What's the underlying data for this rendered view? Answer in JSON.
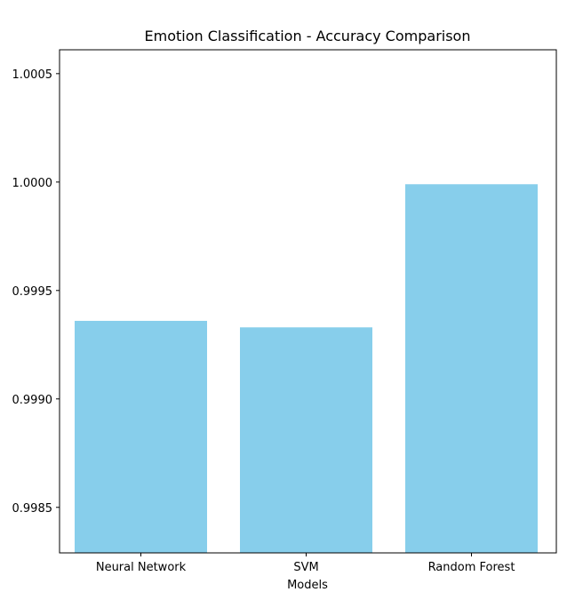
{
  "chart_data": {
    "type": "bar",
    "title": "Emotion Classification - Accuracy Comparison",
    "xlabel": "Models",
    "ylabel": "",
    "categories": [
      "Neural Network",
      "SVM",
      "Random Forest"
    ],
    "values": [
      0.99936,
      0.99933,
      0.99999
    ],
    "ylim": [
      0.99829,
      1.00061
    ],
    "yticks": [
      0.9985,
      0.999,
      0.9995,
      1.0,
      1.0005
    ],
    "ytick_labels": [
      "0.9985",
      "0.9990",
      "0.9995",
      "1.0000",
      "1.0005"
    ],
    "bar_color": "#87ceeb",
    "grid": false,
    "legend": "none"
  }
}
